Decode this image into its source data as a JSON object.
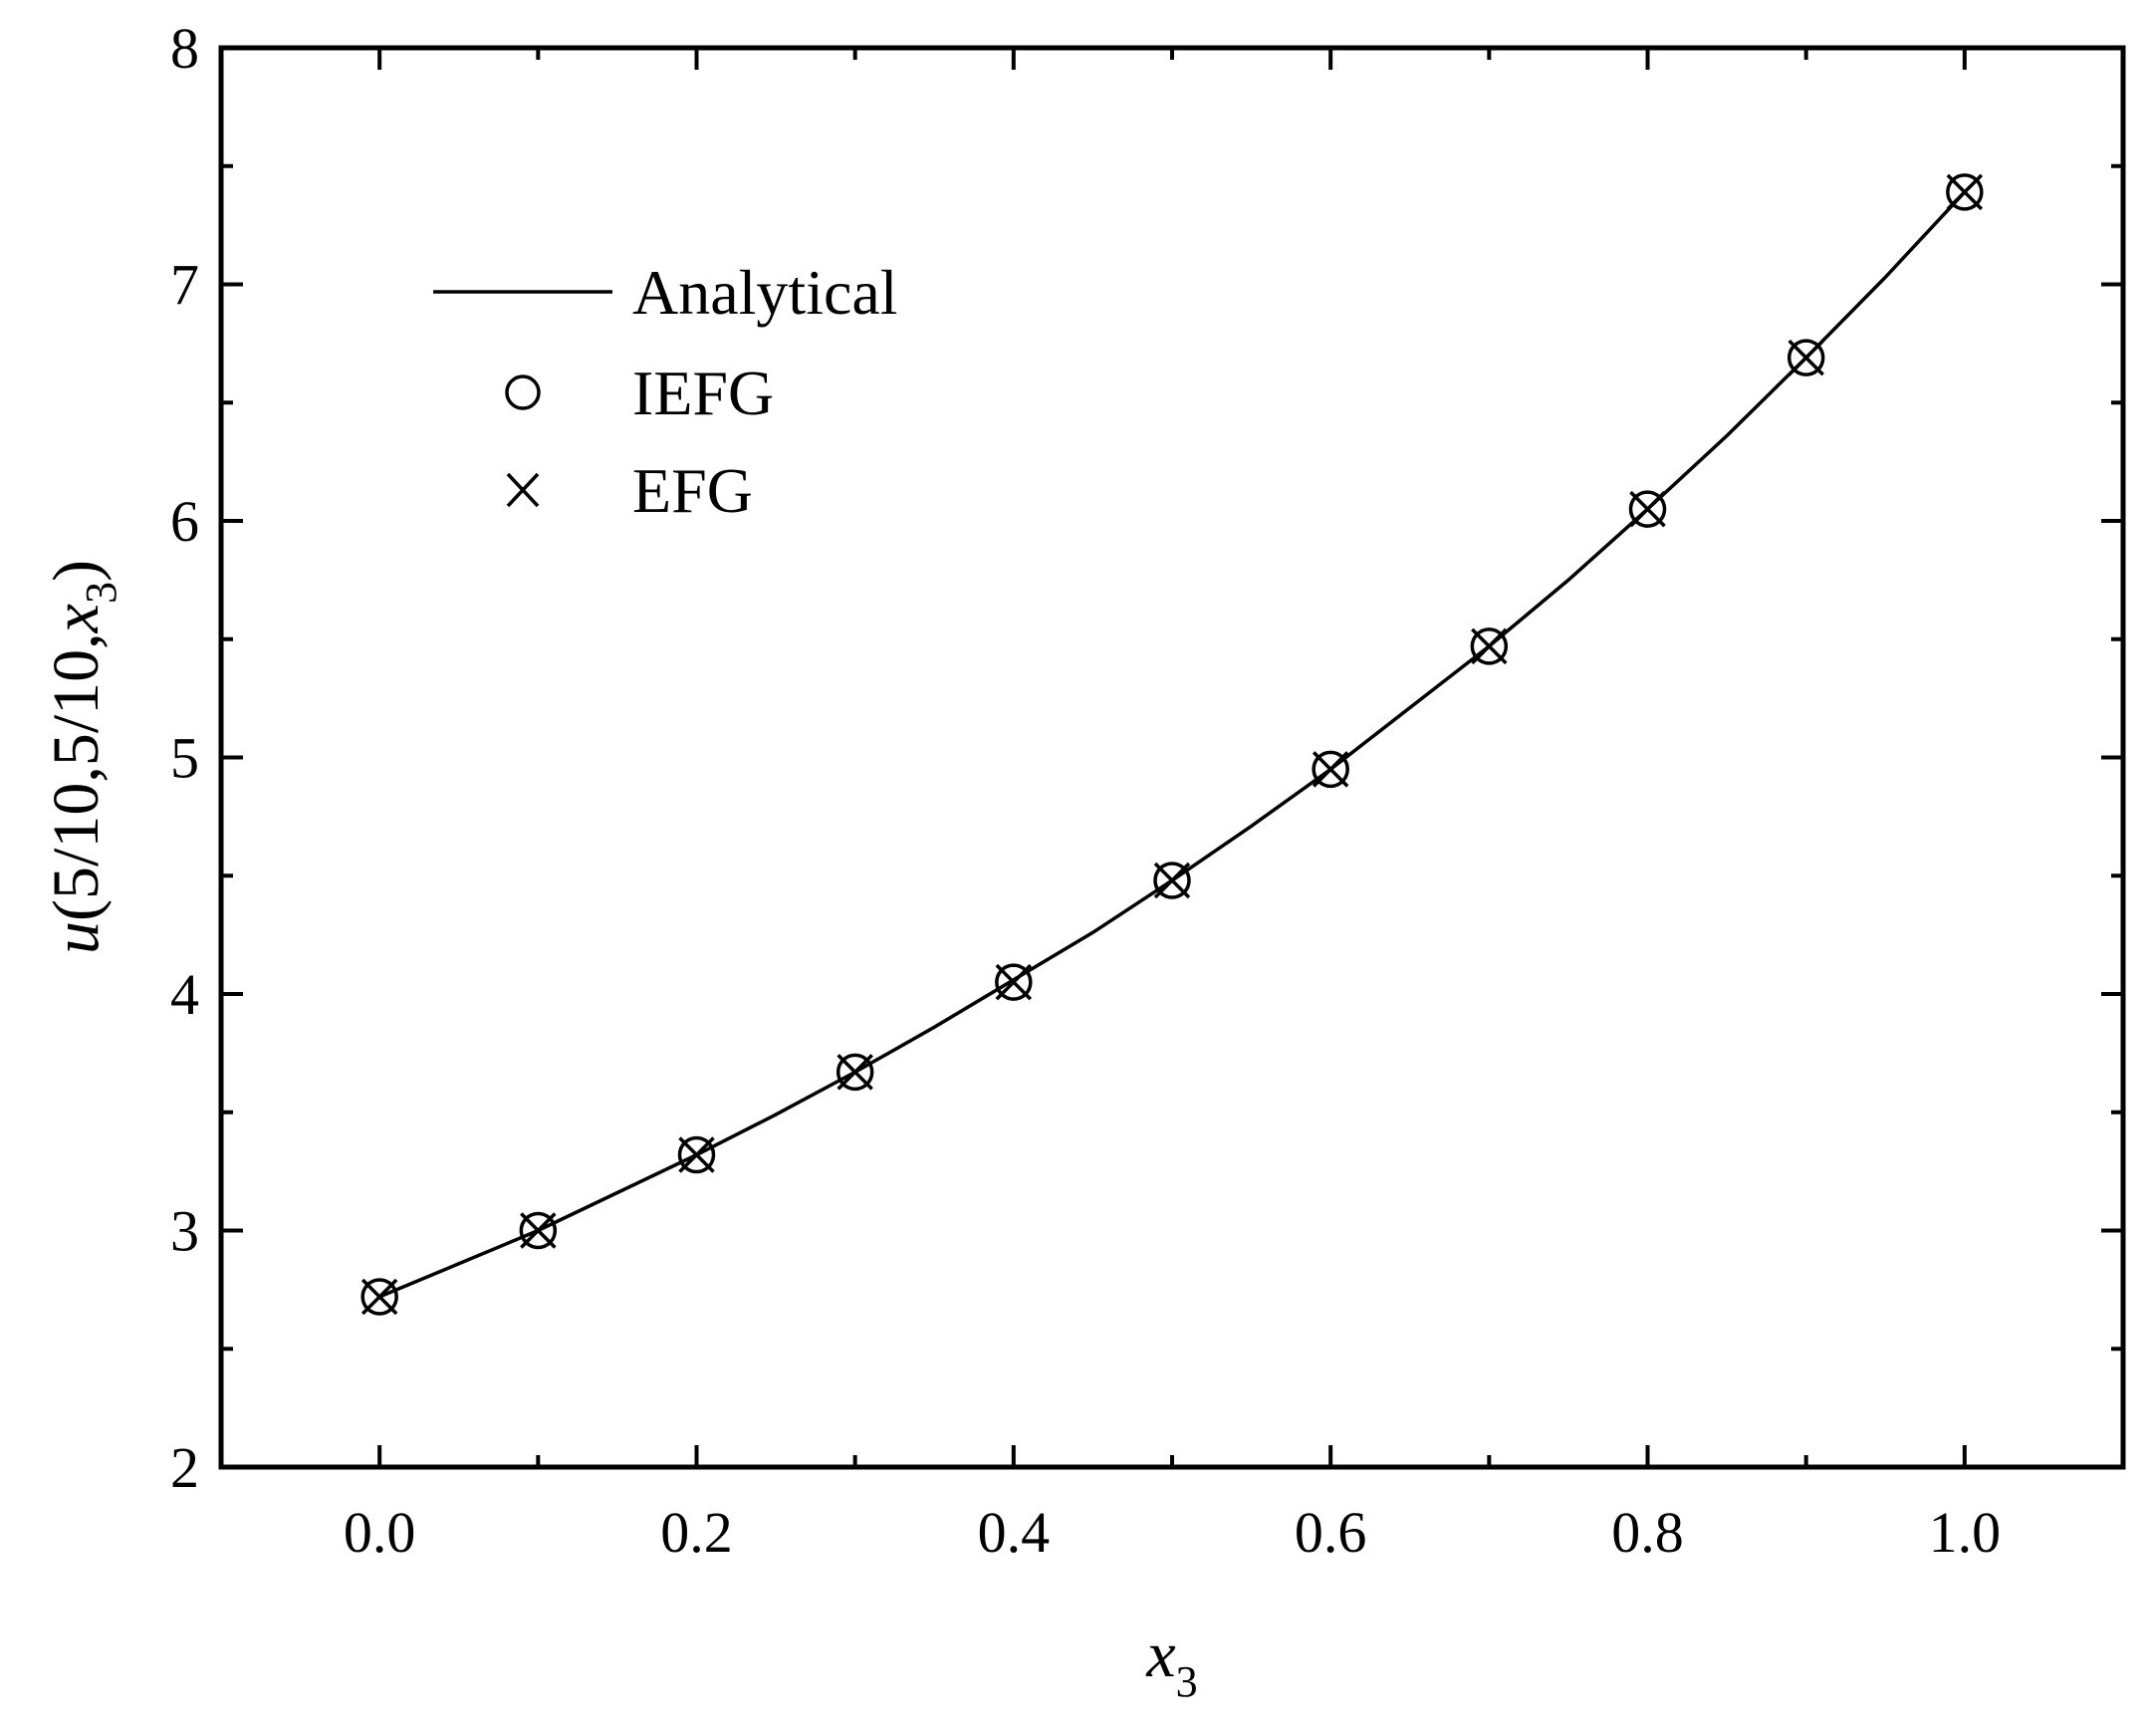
{
  "chart_data": {
    "type": "line",
    "x_label": {
      "base": "x",
      "sub": "3"
    },
    "y_label": {
      "prefix": "u",
      "middle": "(5/10,5/10,",
      "var": "x",
      "sub": "3",
      "suffix": ")"
    },
    "xlim": [
      -0.1,
      1.1
    ],
    "ylim": [
      2,
      8
    ],
    "x_ticks": [
      "0.0",
      "0.2",
      "0.4",
      "0.6",
      "0.8",
      "1.0"
    ],
    "y_ticks": [
      "2",
      "3",
      "4",
      "5",
      "6",
      "7",
      "8"
    ],
    "x_tick_values": [
      0.0,
      0.2,
      0.4,
      0.6,
      0.8,
      1.0
    ],
    "y_tick_values": [
      2,
      3,
      4,
      5,
      6,
      7,
      8
    ],
    "x_minor_tick_values": [
      -0.1,
      0.1,
      0.3,
      0.5,
      0.7,
      0.9,
      1.1
    ],
    "y_minor_tick_values": [
      2.5,
      3.5,
      4.5,
      5.5,
      6.5,
      7.5
    ],
    "grid": false,
    "legend_position": "top-left",
    "series": [
      {
        "name": "Analytical",
        "style": "line",
        "x": [
          0.0,
          0.05,
          0.1,
          0.15,
          0.2,
          0.25,
          0.3,
          0.35,
          0.4,
          0.45,
          0.5,
          0.55,
          0.6,
          0.65,
          0.7,
          0.75,
          0.8,
          0.85,
          0.9,
          0.95,
          1.0
        ],
        "y": [
          2.72,
          2.86,
          3.0,
          3.16,
          3.32,
          3.49,
          3.67,
          3.86,
          4.06,
          4.26,
          4.48,
          4.71,
          4.95,
          5.21,
          5.47,
          5.75,
          6.05,
          6.36,
          6.69,
          7.03,
          7.39
        ]
      },
      {
        "name": "IEFG",
        "style": "circle",
        "x": [
          0.0,
          0.1,
          0.2,
          0.3,
          0.4,
          0.5,
          0.6,
          0.7,
          0.8,
          0.9,
          1.0
        ],
        "y": [
          2.72,
          3.0,
          3.32,
          3.67,
          4.05,
          4.48,
          4.95,
          5.47,
          6.05,
          6.69,
          7.39
        ]
      },
      {
        "name": "EFG",
        "style": "cross",
        "x": [
          0.0,
          0.1,
          0.2,
          0.3,
          0.4,
          0.5,
          0.6,
          0.7,
          0.8,
          0.9,
          1.0
        ],
        "y": [
          2.72,
          3.0,
          3.32,
          3.67,
          4.05,
          4.48,
          4.95,
          5.47,
          6.05,
          6.69,
          7.39
        ]
      }
    ]
  }
}
